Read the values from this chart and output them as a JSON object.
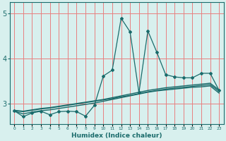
{
  "title": "",
  "xlabel": "Humidex (Indice chaleur)",
  "ylabel": "",
  "background_color": "#d8f0ee",
  "grid_color": "#e88080",
  "line_color": "#1a6b6b",
  "x_values": [
    0,
    1,
    2,
    3,
    4,
    5,
    6,
    7,
    8,
    9,
    10,
    11,
    12,
    13,
    14,
    15,
    16,
    17,
    18,
    19,
    20,
    21,
    22,
    23
  ],
  "main_curve": [
    2.85,
    2.72,
    2.8,
    2.84,
    2.76,
    2.83,
    2.84,
    2.83,
    2.73,
    2.97,
    3.62,
    3.75,
    4.9,
    4.6,
    3.25,
    4.62,
    4.15,
    3.65,
    3.6,
    3.58,
    3.58,
    3.68,
    3.68,
    3.3
  ],
  "trend_line1": [
    2.86,
    2.84,
    2.87,
    2.9,
    2.92,
    2.95,
    2.98,
    3.01,
    3.04,
    3.07,
    3.1,
    3.14,
    3.18,
    3.22,
    3.26,
    3.3,
    3.33,
    3.36,
    3.38,
    3.4,
    3.42,
    3.44,
    3.46,
    3.31
  ],
  "trend_line2": [
    2.85,
    2.83,
    2.86,
    2.89,
    2.91,
    2.94,
    2.97,
    3.0,
    3.03,
    3.06,
    3.09,
    3.12,
    3.16,
    3.19,
    3.23,
    3.27,
    3.3,
    3.33,
    3.35,
    3.37,
    3.39,
    3.41,
    3.43,
    3.28
  ],
  "trend_line3": [
    2.84,
    2.78,
    2.82,
    2.85,
    2.87,
    2.9,
    2.93,
    2.96,
    2.99,
    3.02,
    3.06,
    3.1,
    3.14,
    3.18,
    3.22,
    3.26,
    3.29,
    3.31,
    3.33,
    3.35,
    3.37,
    3.38,
    3.4,
    3.24
  ],
  "yticks": [
    3,
    4,
    5
  ],
  "ylim": [
    2.55,
    5.25
  ],
  "xlim": [
    -0.5,
    23.5
  ]
}
